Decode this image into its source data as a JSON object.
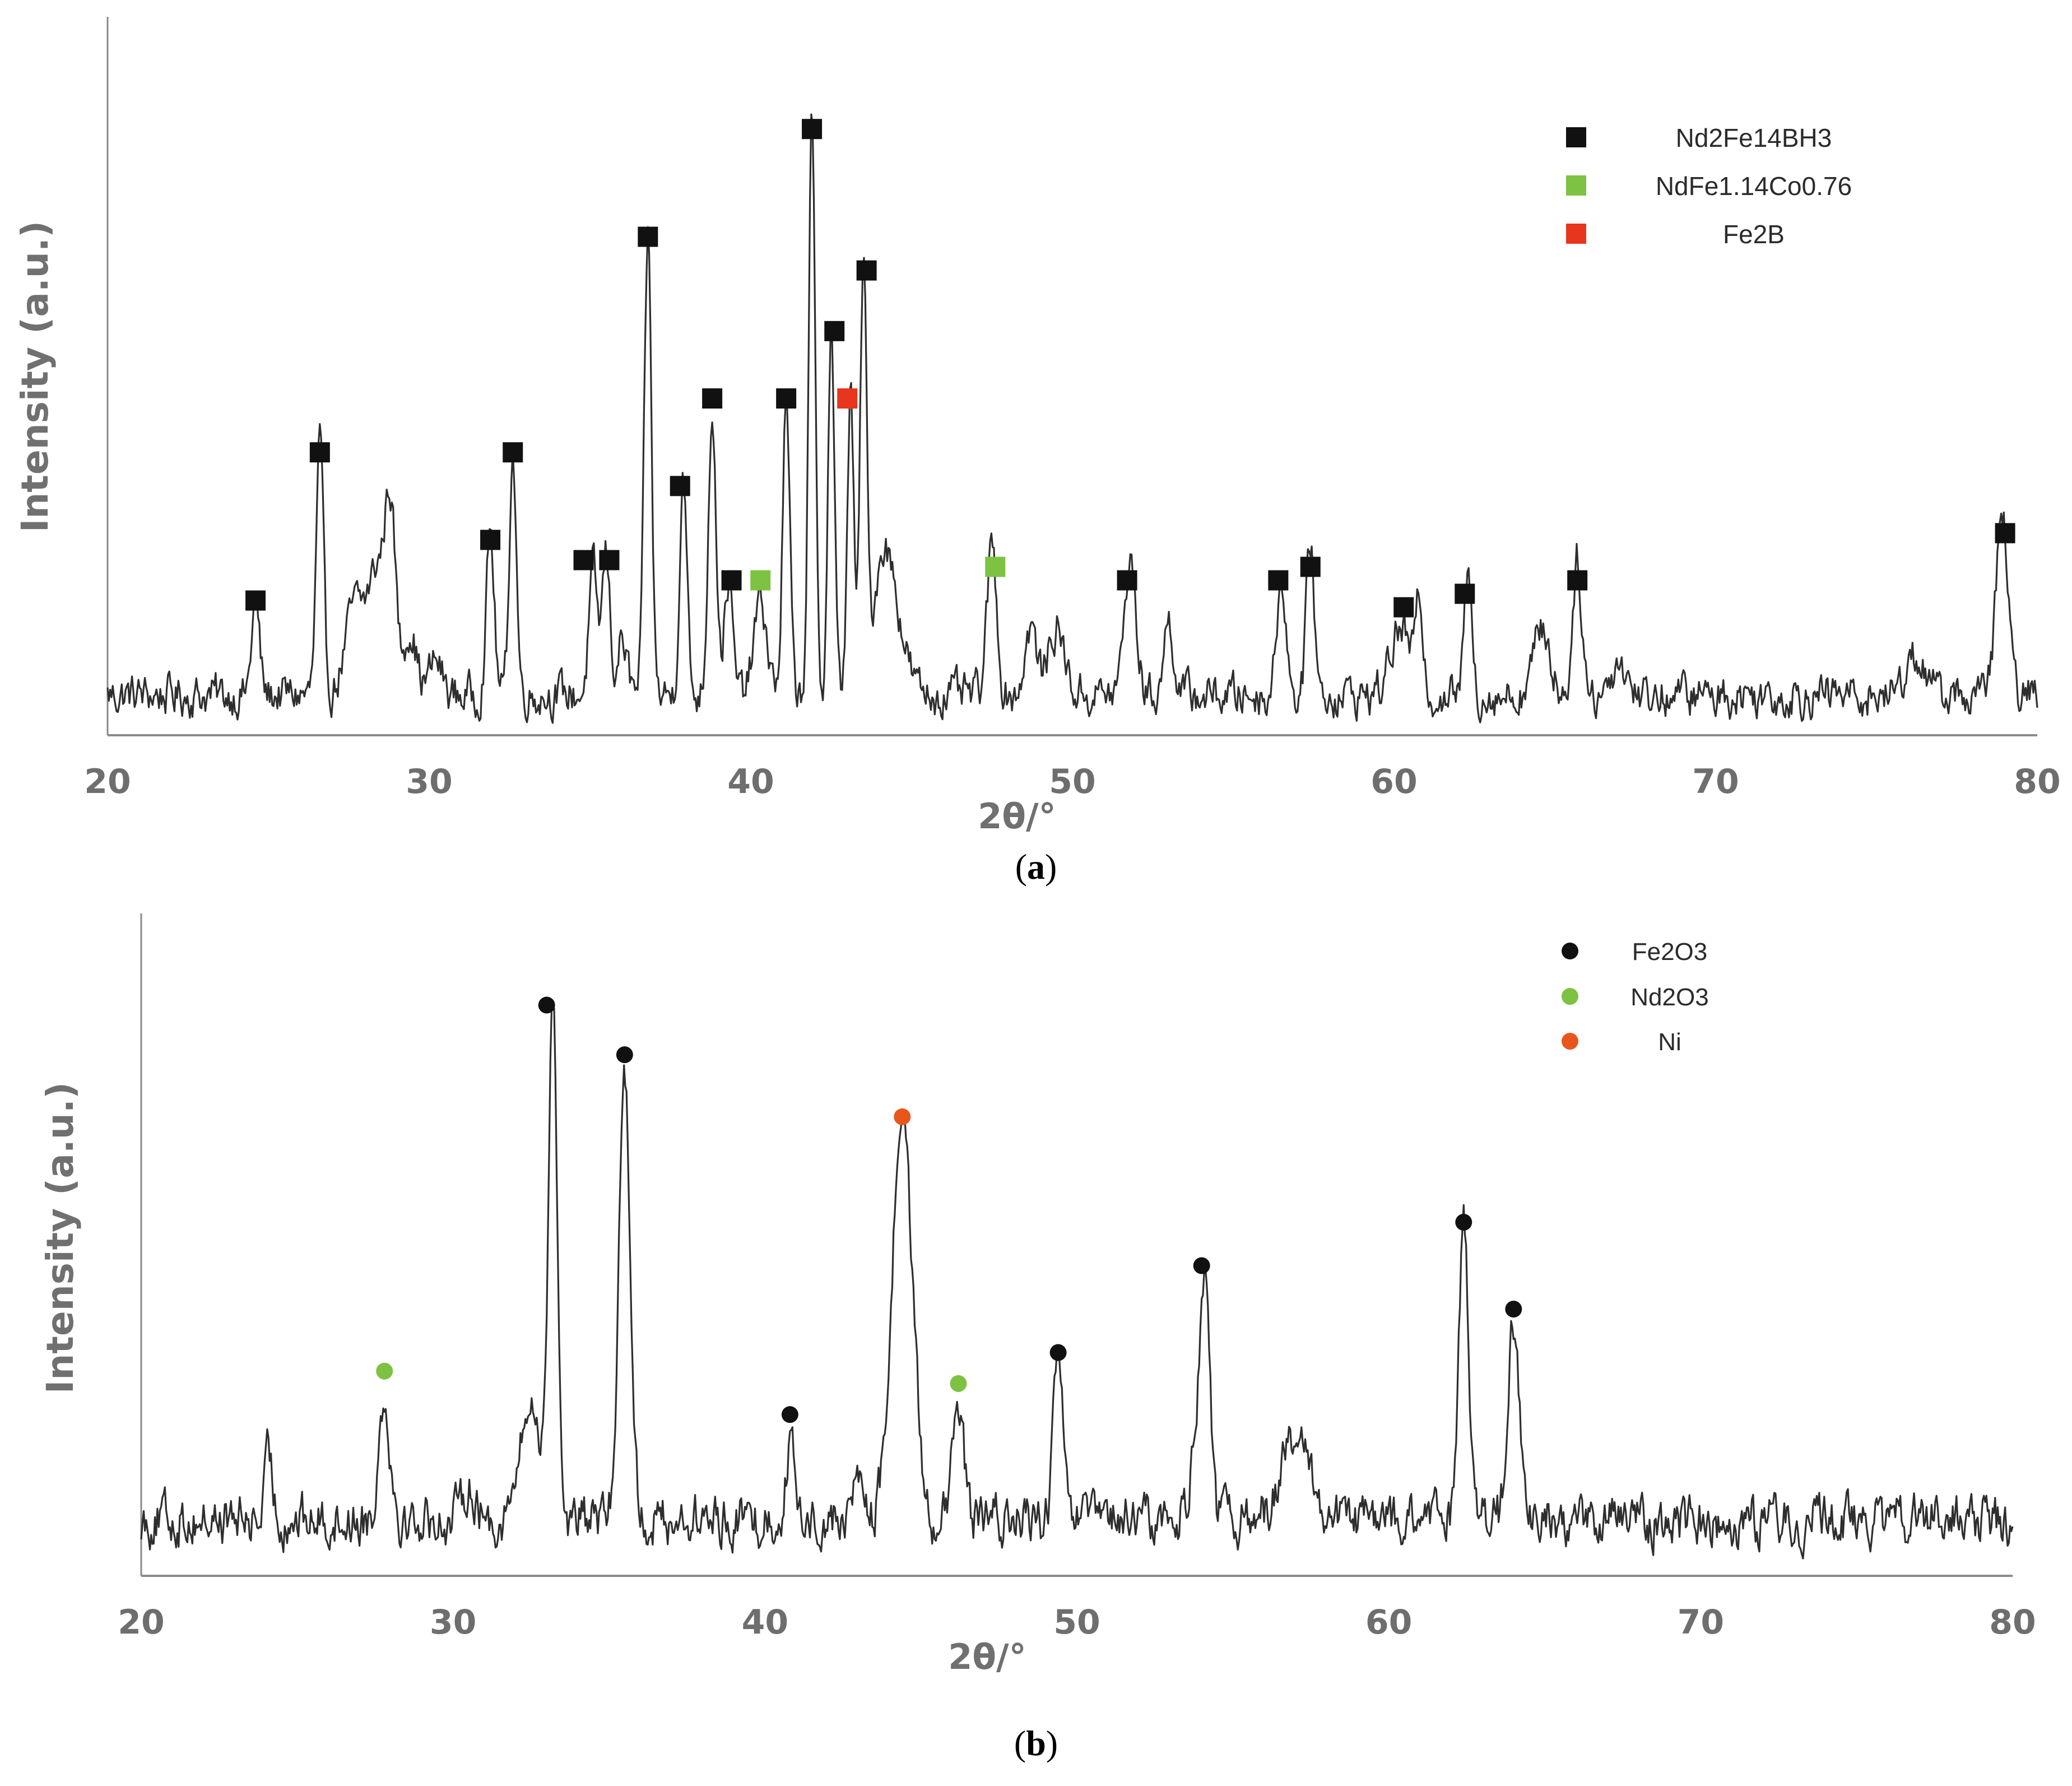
{
  "chart_data": [
    {
      "type": "line",
      "panel_label": "a",
      "xlabel": "2θ/°",
      "ylabel": "Intensity (a.u.)",
      "xlim": [
        20,
        80
      ],
      "xticks": [
        "20",
        "30",
        "40",
        "50",
        "60",
        "70",
        "80"
      ],
      "y_ticks_shown": false,
      "grid": false,
      "legend_position": "top-right",
      "legend": [
        {
          "name": "Nd2Fe14BH3",
          "marker": "square",
          "color": "#111111"
        },
        {
          "name": "NdFe1.14Co0.76",
          "marker": "square",
          "color": "#7dc242"
        },
        {
          "name": "Fe2B",
          "marker": "square",
          "color": "#e8351d"
        }
      ],
      "background_level": 0.06,
      "noise_amplitude": 0.035,
      "peaks": [
        [
          24.6,
          0.14,
          0.12
        ],
        [
          26.6,
          0.37,
          0.11
        ],
        [
          27.7,
          0.13,
          0.3
        ],
        [
          28.4,
          0.18,
          0.28
        ],
        [
          28.8,
          0.24,
          0.16
        ],
        [
          29.4,
          0.1,
          0.2
        ],
        [
          30.2,
          0.05,
          0.2
        ],
        [
          31.9,
          0.24,
          0.12
        ],
        [
          32.6,
          0.36,
          0.11
        ],
        [
          35.1,
          0.18,
          0.13
        ],
        [
          35.5,
          0.21,
          0.12
        ],
        [
          36.0,
          0.08,
          0.15
        ],
        [
          36.8,
          0.68,
          0.11
        ],
        [
          37.9,
          0.33,
          0.11
        ],
        [
          38.8,
          0.43,
          0.12
        ],
        [
          39.3,
          0.17,
          0.13
        ],
        [
          40.3,
          0.14,
          0.2
        ],
        [
          41.1,
          0.43,
          0.11
        ],
        [
          41.9,
          0.85,
          0.1
        ],
        [
          42.5,
          0.55,
          0.1
        ],
        [
          43.1,
          0.45,
          0.1
        ],
        [
          43.5,
          0.63,
          0.1
        ],
        [
          44.1,
          0.2,
          0.3
        ],
        [
          44.6,
          0.08,
          0.3
        ],
        [
          47.5,
          0.22,
          0.15
        ],
        [
          48.7,
          0.1,
          0.18
        ],
        [
          49.5,
          0.1,
          0.25
        ],
        [
          51.8,
          0.2,
          0.18
        ],
        [
          53.0,
          0.11,
          0.15
        ],
        [
          56.5,
          0.18,
          0.14
        ],
        [
          57.4,
          0.23,
          0.12
        ],
        [
          60.2,
          0.1,
          0.3
        ],
        [
          60.8,
          0.13,
          0.12
        ],
        [
          62.3,
          0.17,
          0.12
        ],
        [
          64.6,
          0.1,
          0.25
        ],
        [
          65.7,
          0.2,
          0.14
        ],
        [
          67.0,
          0.05,
          0.25
        ],
        [
          76.2,
          0.06,
          0.3
        ],
        [
          78.9,
          0.27,
          0.18
        ]
      ],
      "markers": [
        {
          "phase": "Nd2Fe14BH3",
          "x": 24.6,
          "y": 0.2
        },
        {
          "phase": "Nd2Fe14BH3",
          "x": 26.6,
          "y": 0.42
        },
        {
          "phase": "Nd2Fe14BH3",
          "x": 31.9,
          "y": 0.29
        },
        {
          "phase": "Nd2Fe14BH3",
          "x": 32.6,
          "y": 0.42
        },
        {
          "phase": "Nd2Fe14BH3",
          "x": 34.8,
          "y": 0.26
        },
        {
          "phase": "Nd2Fe14BH3",
          "x": 35.6,
          "y": 0.26
        },
        {
          "phase": "Nd2Fe14BH3",
          "x": 36.8,
          "y": 0.74
        },
        {
          "phase": "Nd2Fe14BH3",
          "x": 37.8,
          "y": 0.37
        },
        {
          "phase": "Nd2Fe14BH3",
          "x": 38.8,
          "y": 0.5
        },
        {
          "phase": "Nd2Fe14BH3",
          "x": 39.4,
          "y": 0.23
        },
        {
          "phase": "NdFe1.14Co0.76",
          "x": 40.3,
          "y": 0.23
        },
        {
          "phase": "Nd2Fe14BH3",
          "x": 41.1,
          "y": 0.5
        },
        {
          "phase": "Nd2Fe14BH3",
          "x": 41.9,
          "y": 0.9
        },
        {
          "phase": "Nd2Fe14BH3",
          "x": 42.6,
          "y": 0.6
        },
        {
          "phase": "Fe2B",
          "x": 43.0,
          "y": 0.5
        },
        {
          "phase": "Nd2Fe14BH3",
          "x": 43.6,
          "y": 0.69
        },
        {
          "phase": "NdFe1.14Co0.76",
          "x": 47.6,
          "y": 0.25
        },
        {
          "phase": "Nd2Fe14BH3",
          "x": 51.7,
          "y": 0.23
        },
        {
          "phase": "Nd2Fe14BH3",
          "x": 56.4,
          "y": 0.23
        },
        {
          "phase": "Nd2Fe14BH3",
          "x": 57.4,
          "y": 0.25
        },
        {
          "phase": "Nd2Fe14BH3",
          "x": 60.3,
          "y": 0.19
        },
        {
          "phase": "Nd2Fe14BH3",
          "x": 62.2,
          "y": 0.21
        },
        {
          "phase": "Nd2Fe14BH3",
          "x": 65.7,
          "y": 0.23
        },
        {
          "phase": "Nd2Fe14BH3",
          "x": 79.0,
          "y": 0.3
        }
      ]
    },
    {
      "type": "line",
      "panel_label": "b",
      "xlabel": "2θ/°",
      "ylabel": "Intensity (a.u.)",
      "xlim": [
        20,
        80
      ],
      "xticks": [
        "20",
        "30",
        "40",
        "50",
        "60",
        "70",
        "80"
      ],
      "y_ticks_shown": false,
      "grid": false,
      "legend_position": "top-right",
      "legend": [
        {
          "name": "Fe2O3",
          "marker": "circle",
          "color": "#111111"
        },
        {
          "name": "Nd2O3",
          "marker": "circle",
          "color": "#7dc242"
        },
        {
          "name": "Ni",
          "marker": "circle",
          "color": "#e8561d"
        }
      ],
      "background_level": 0.09,
      "noise_amplitude": 0.045,
      "peaks": [
        [
          24.1,
          0.1,
          0.12
        ],
        [
          27.8,
          0.2,
          0.18
        ],
        [
          30.5,
          0.06,
          0.2
        ],
        [
          32.5,
          0.18,
          0.35
        ],
        [
          33.2,
          0.82,
          0.14
        ],
        [
          35.5,
          0.73,
          0.18
        ],
        [
          40.8,
          0.12,
          0.14
        ],
        [
          43.0,
          0.08,
          0.15
        ],
        [
          44.4,
          0.66,
          0.32
        ],
        [
          46.2,
          0.17,
          0.18
        ],
        [
          49.4,
          0.28,
          0.14
        ],
        [
          53.8,
          0.1,
          0.2
        ],
        [
          54.1,
          0.37,
          0.16
        ],
        [
          57.0,
          0.12,
          0.5
        ],
        [
          62.4,
          0.49,
          0.16
        ],
        [
          64.0,
          0.32,
          0.18
        ]
      ],
      "markers": [
        {
          "phase": "Nd2O3",
          "x": 27.8,
          "y": 0.33
        },
        {
          "phase": "Fe2O3",
          "x": 33.0,
          "y": 0.92
        },
        {
          "phase": "Fe2O3",
          "x": 35.5,
          "y": 0.84
        },
        {
          "phase": "Fe2O3",
          "x": 40.8,
          "y": 0.26
        },
        {
          "phase": "Ni",
          "x": 44.4,
          "y": 0.74
        },
        {
          "phase": "Nd2O3",
          "x": 46.2,
          "y": 0.31
        },
        {
          "phase": "Fe2O3",
          "x": 49.4,
          "y": 0.36
        },
        {
          "phase": "Fe2O3",
          "x": 54.0,
          "y": 0.5
        },
        {
          "phase": "Fe2O3",
          "x": 62.4,
          "y": 0.57
        },
        {
          "phase": "Fe2O3",
          "x": 64.0,
          "y": 0.43
        }
      ]
    }
  ]
}
